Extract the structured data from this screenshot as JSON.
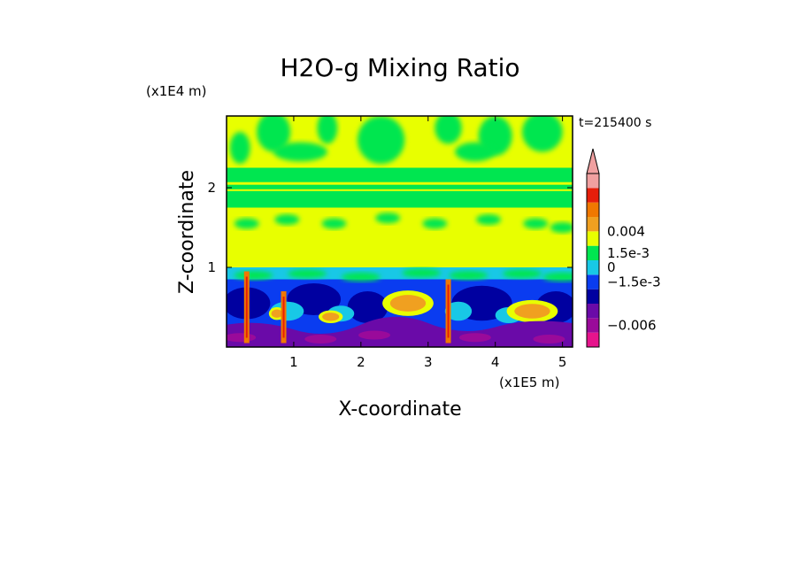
{
  "chart_data": {
    "type": "heatmap",
    "title": "H2O-g Mixing Ratio",
    "xlabel": "X-coordinate",
    "ylabel": "Z-coordinate",
    "x_unit": "(x1E5 m)",
    "y_unit": "(x1E4 m)",
    "time_label": "t=215400 s",
    "xlim": [
      0,
      5.15
    ],
    "ylim": [
      0,
      2.9
    ],
    "x_ticks": [
      1,
      2,
      3,
      4,
      5
    ],
    "y_ticks": [
      1,
      2
    ],
    "colorbar": {
      "labels": [
        {
          "value": "0.004",
          "level": 8
        },
        {
          "value": "1.5e-3",
          "level": 6.5
        },
        {
          "value": "0",
          "level": 5.5
        },
        {
          "value": "−1.5e-3",
          "level": 4.5
        },
        {
          "value": "−0.006",
          "level": 1.5
        }
      ],
      "levels": [
        {
          "color": "#f0f0f0"
        },
        {
          "color": "#e6148c"
        },
        {
          "color": "#9a0a9a"
        },
        {
          "color": "#6a0aa8"
        },
        {
          "color": "#0000a0"
        },
        {
          "color": "#0a3cf0"
        },
        {
          "color": "#18c8e6"
        },
        {
          "color": "#00e650"
        },
        {
          "color": "#e8ff00"
        },
        {
          "color": "#f0a020"
        },
        {
          "color": "#f07800"
        },
        {
          "color": "#e61e0a"
        },
        {
          "color": "#f0a0a0"
        }
      ],
      "extend_max": true
    },
    "bands": [
      {
        "z": [
          2.25,
          2.9
        ],
        "class": "yellow-green mix (near zero)"
      },
      {
        "z": [
          1.9,
          2.25
        ],
        "class": "green (~0)"
      },
      {
        "z": [
          1.0,
          1.9
        ],
        "class": "yellow (slightly positive)"
      },
      {
        "z": [
          0.3,
          1.0
        ],
        "class": "blue-cyan mixed with orange eddies"
      },
      {
        "z": [
          0.0,
          0.3
        ],
        "class": "purple (negative, ~-0.006)"
      }
    ]
  }
}
